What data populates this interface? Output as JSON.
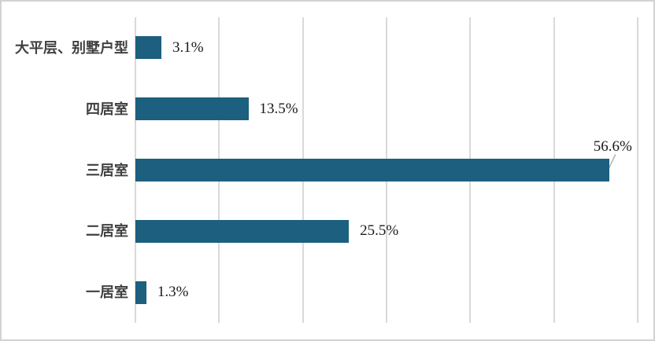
{
  "chart_data": {
    "type": "bar",
    "orientation": "horizontal",
    "title": "",
    "xlabel": "",
    "ylabel": "",
    "categories": [
      "大平层、别墅户型",
      "四居室",
      "三居室",
      "二居室",
      "一居室"
    ],
    "values": [
      3.1,
      13.5,
      56.6,
      25.5,
      1.3
    ],
    "value_labels": [
      "3.1%",
      "13.5%",
      "56.6%",
      "25.5%",
      "1.3%"
    ],
    "xlim": [
      0,
      60
    ],
    "gridline_step_pct": 10,
    "grid": "vertical-gridlines-only",
    "legend": "none",
    "axis_tick_labels": "none",
    "bar_color": "#1c5f7f",
    "gridline_color": "#d9d9d9",
    "category_label_color": "#404040",
    "value_label_color": "#1a1a1a",
    "leader_line_color": "#b3b3b3",
    "callout": {
      "category": "三居室",
      "value_label": "56.6%",
      "style": "label-above-bar-with-leader-line"
    }
  }
}
